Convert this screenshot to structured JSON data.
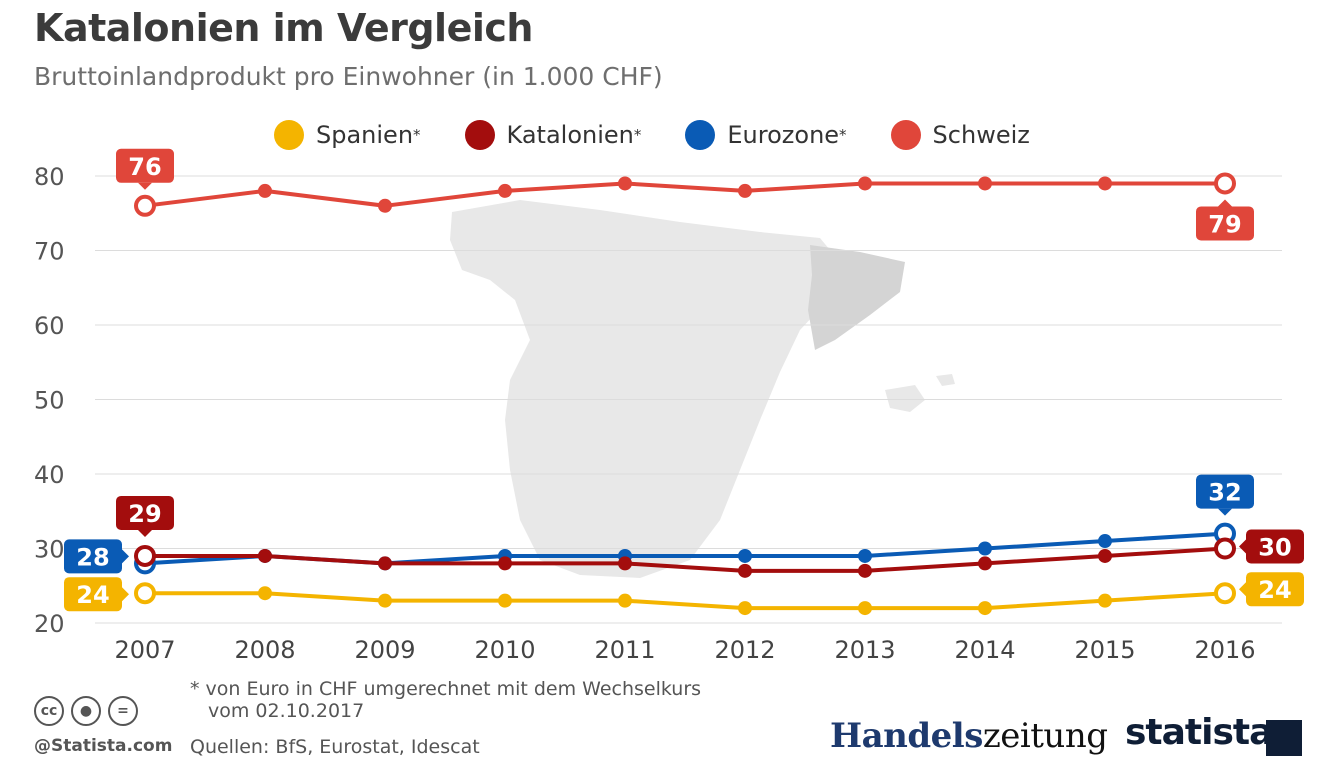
{
  "title": "Katalonien im Vergleich",
  "subtitle": "Bruttoinlandprodukt pro Einwohner (in 1.000 CHF)",
  "legend": [
    {
      "label": "Spanien",
      "star": "*",
      "color": "#f4b400"
    },
    {
      "label": "Katalonien",
      "star": "*",
      "color": "#a30d0d"
    },
    {
      "label": "Eurozone",
      "star": "*",
      "color": "#0a5bb5"
    },
    {
      "label": "Schweiz",
      "star": "",
      "color": "#e0463a"
    }
  ],
  "chart_data": {
    "type": "line",
    "title": "Katalonien im Vergleich",
    "subtitle": "Bruttoinlandprodukt pro Einwohner (in 1.000 CHF)",
    "xlabel": "",
    "ylabel": "",
    "x": [
      "2007",
      "2008",
      "2009",
      "2010",
      "2011",
      "2012",
      "2013",
      "2014",
      "2015",
      "2016"
    ],
    "ylim": [
      20,
      80
    ],
    "yticks": [
      20,
      30,
      40,
      50,
      60,
      70,
      80
    ],
    "grid": true,
    "legend_position": "top",
    "series": [
      {
        "name": "Schweiz",
        "color": "#e0463a",
        "values": [
          76,
          78,
          76,
          78,
          79,
          78,
          79,
          79,
          79,
          79
        ],
        "start_label": "76",
        "end_label": "79"
      },
      {
        "name": "Eurozone",
        "color": "#0a5bb5",
        "values": [
          28,
          29,
          28,
          29,
          29,
          29,
          29,
          30,
          31,
          32
        ],
        "start_label": "28",
        "end_label": "32"
      },
      {
        "name": "Katalonien",
        "color": "#a30d0d",
        "values": [
          29,
          29,
          28,
          28,
          28,
          27,
          27,
          28,
          29,
          30
        ],
        "start_label": "29",
        "end_label": "30"
      },
      {
        "name": "Spanien",
        "color": "#f4b400",
        "values": [
          24,
          24,
          23,
          23,
          23,
          22,
          22,
          22,
          23,
          24
        ],
        "start_label": "24",
        "end_label": "24"
      }
    ]
  },
  "footnote": {
    "line1": "* von Euro in CHF umgerechnet mit dem Wechselkurs",
    "line2": "vom 02.10.2017"
  },
  "sources": "Quellen: BfS, Eurostat, Idescat",
  "credit": "@Statista.com",
  "cc_icons": [
    "cc-icon",
    "by-icon",
    "nd-icon"
  ],
  "logos": {
    "handelszeitung_a": "Handels",
    "handelszeitung_b": "zeitung",
    "statista": "statista"
  }
}
